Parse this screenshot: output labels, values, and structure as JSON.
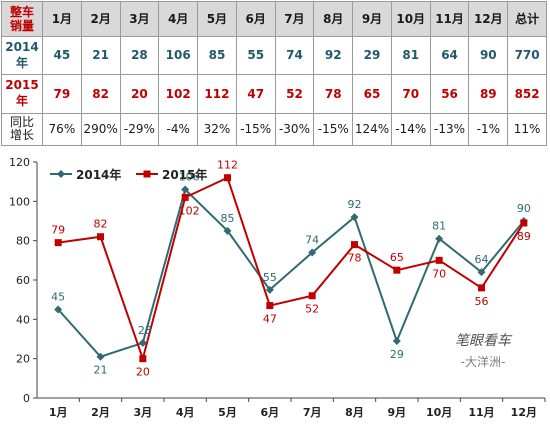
{
  "table": {
    "corner_label": "整车\n销量",
    "months": [
      "1月",
      "2月",
      "3月",
      "4月",
      "5月",
      "6月",
      "7月",
      "8月",
      "9月",
      "10月",
      "11月",
      "12月"
    ],
    "total_label": "总计",
    "rows": [
      {
        "label": "2014年",
        "values": [
          "45",
          "21",
          "28",
          "106",
          "85",
          "55",
          "74",
          "92",
          "29",
          "81",
          "64",
          "90"
        ],
        "total": "770",
        "color": "#215a6b"
      },
      {
        "label": "2015年",
        "values": [
          "79",
          "82",
          "20",
          "102",
          "112",
          "47",
          "52",
          "78",
          "65",
          "70",
          "56",
          "89"
        ],
        "total": "852",
        "color": "#c00000"
      },
      {
        "label": "同比\n增长",
        "values": [
          "76%",
          "290%",
          "-29%",
          "-4%",
          "32%",
          "-15%",
          "-30%",
          "-15%",
          "124%",
          "-14%",
          "-13%",
          "-1%"
        ],
        "total": "11%",
        "color": "#1a1a1a"
      }
    ]
  },
  "chart_data": {
    "type": "line",
    "categories": [
      "1月",
      "2月",
      "3月",
      "4月",
      "5月",
      "6月",
      "7月",
      "8月",
      "9月",
      "10月",
      "11月",
      "12月"
    ],
    "series": [
      {
        "name": "2014年",
        "color": "#2e6b72",
        "values": [
          45,
          21,
          28,
          106,
          85,
          55,
          74,
          92,
          29,
          81,
          64,
          90
        ]
      },
      {
        "name": "2015年",
        "color": "#c00000",
        "values": [
          79,
          82,
          20,
          102,
          112,
          47,
          52,
          78,
          65,
          70,
          56,
          89
        ]
      }
    ],
    "ylim": [
      0,
      120
    ],
    "yticks": [
      0,
      20,
      40,
      60,
      80,
      100,
      120
    ],
    "legend_position": "top-left",
    "grid": false
  },
  "watermark": {
    "brand": "笔眼看车",
    "author": "-大洋洲-"
  }
}
